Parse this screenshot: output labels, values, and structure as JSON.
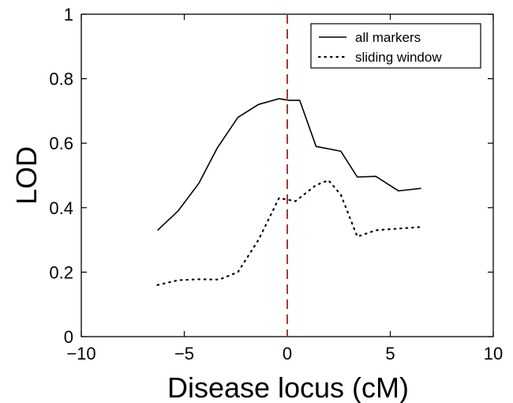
{
  "chart_data": {
    "type": "line",
    "title": "",
    "xlabel": "Disease locus (cM)",
    "ylabel": "LOD",
    "xlim": [
      -10,
      10
    ],
    "ylim": [
      0,
      1
    ],
    "xticks": [
      -10,
      -5,
      0,
      5,
      10
    ],
    "xtick_labels": [
      "−10",
      "−5",
      "0",
      "5",
      "10"
    ],
    "yticks": [
      0,
      0.2,
      0.4,
      0.6,
      0.8,
      1
    ],
    "ytick_labels": [
      "0",
      "0.2",
      "0.4",
      "0.6",
      "0.8",
      "1"
    ],
    "grid": false,
    "legend_position": "top-right",
    "series": [
      {
        "name": "all markers",
        "style": "solid",
        "color": "#000000",
        "x": [
          -6.3,
          -5.3,
          -4.3,
          -3.4,
          -2.4,
          -1.4,
          -0.4,
          0.1,
          0.6,
          1.4,
          2.6,
          3.4,
          4.3,
          5.4,
          6.5
        ],
        "y": [
          0.33,
          0.39,
          0.475,
          0.585,
          0.68,
          0.72,
          0.738,
          0.733,
          0.733,
          0.59,
          0.575,
          0.495,
          0.497,
          0.452,
          0.46
        ]
      },
      {
        "name": "sliding window",
        "style": "dotted",
        "color": "#000000",
        "x": [
          -6.3,
          -5.3,
          -4.3,
          -3.3,
          -2.4,
          -1.4,
          -0.4,
          0.4,
          1.4,
          2.0,
          2.6,
          3.4,
          4.3,
          5.4,
          6.5
        ],
        "y": [
          0.16,
          0.175,
          0.178,
          0.177,
          0.2,
          0.3,
          0.43,
          0.42,
          0.47,
          0.485,
          0.44,
          0.31,
          0.33,
          0.335,
          0.34
        ]
      }
    ],
    "reference_line": {
      "x": 0,
      "color": "#d62222",
      "style": "dashed"
    }
  }
}
